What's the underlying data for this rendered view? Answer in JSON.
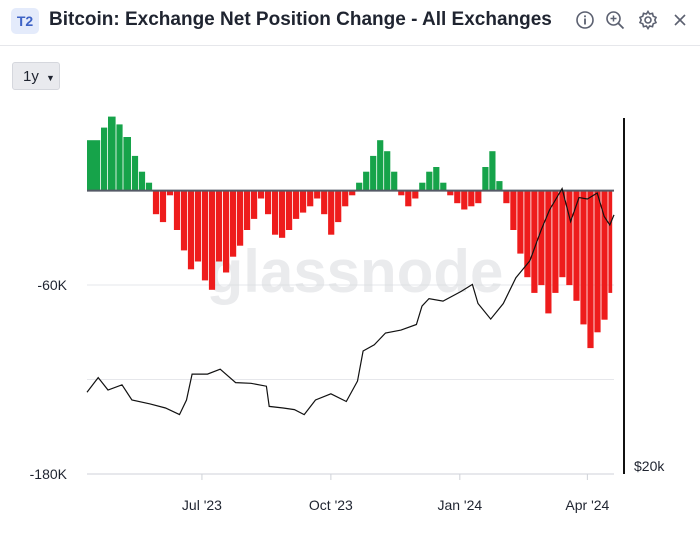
{
  "header": {
    "badge": "T2",
    "title": "Bitcoin: Exchange Net Position Change - All Exchanges",
    "icons": [
      "info-icon",
      "zoom-icon",
      "gear-icon",
      "close-icon"
    ]
  },
  "toolbar": {
    "range_label": "1y"
  },
  "watermark": "glassnode",
  "colors": {
    "positive": "#16a34a",
    "negative": "#ee1c1c",
    "price": "#111111"
  },
  "chart_data": {
    "type": "bar",
    "title": "Bitcoin: Exchange Net Position Change - All Exchanges",
    "x_range": [
      "2023-04-10",
      "2024-04-20"
    ],
    "x_ticks": [
      {
        "date": "2023-07-01",
        "label": "Jul '23"
      },
      {
        "date": "2023-10-01",
        "label": "Oct '23"
      },
      {
        "date": "2024-01-01",
        "label": "Jan '24"
      },
      {
        "date": "2024-04-01",
        "label": "Apr '24"
      }
    ],
    "y_left": {
      "ylim": [
        -180000,
        48000
      ],
      "ticks": [
        {
          "value": -60000,
          "label": "-60K"
        },
        {
          "value": -180000,
          "label": "-180K"
        }
      ]
    },
    "y_right": {
      "label": "$20k",
      "scale": "log"
    },
    "grid": true,
    "series": [
      {
        "kind": "bar",
        "points": [
          [
            "2023-04-10",
            32000
          ],
          [
            "2023-04-20",
            40000
          ],
          [
            "2023-04-25",
            47000
          ],
          [
            "2023-05-01",
            42000
          ],
          [
            "2023-05-06",
            34000
          ],
          [
            "2023-05-12",
            22000
          ],
          [
            "2023-05-17",
            12000
          ],
          [
            "2023-05-22",
            5000
          ],
          [
            "2023-05-27",
            -15000
          ],
          [
            "2023-06-01",
            -20000
          ],
          [
            "2023-06-06",
            -3000
          ],
          [
            "2023-06-11",
            -25000
          ],
          [
            "2023-06-16",
            -38000
          ],
          [
            "2023-06-21",
            -50000
          ],
          [
            "2023-06-26",
            -45000
          ],
          [
            "2023-07-01",
            -57000
          ],
          [
            "2023-07-06",
            -63000
          ],
          [
            "2023-07-11",
            -45000
          ],
          [
            "2023-07-16",
            -52000
          ],
          [
            "2023-07-21",
            -42000
          ],
          [
            "2023-07-26",
            -35000
          ],
          [
            "2023-07-31",
            -25000
          ],
          [
            "2023-08-05",
            -18000
          ],
          [
            "2023-08-10",
            -5000
          ],
          [
            "2023-08-15",
            -15000
          ],
          [
            "2023-08-20",
            -28000
          ],
          [
            "2023-08-25",
            -30000
          ],
          [
            "2023-08-30",
            -25000
          ],
          [
            "2023-09-04",
            -18000
          ],
          [
            "2023-09-09",
            -14000
          ],
          [
            "2023-09-14",
            -10000
          ],
          [
            "2023-09-19",
            -5000
          ],
          [
            "2023-09-24",
            -15000
          ],
          [
            "2023-09-29",
            -28000
          ],
          [
            "2023-10-04",
            -20000
          ],
          [
            "2023-10-09",
            -10000
          ],
          [
            "2023-10-14",
            -3000
          ],
          [
            "2023-10-19",
            5000
          ],
          [
            "2023-10-24",
            12000
          ],
          [
            "2023-10-29",
            22000
          ],
          [
            "2023-11-03",
            32000
          ],
          [
            "2023-11-08",
            25000
          ],
          [
            "2023-11-13",
            12000
          ],
          [
            "2023-11-18",
            -3000
          ],
          [
            "2023-11-23",
            -10000
          ],
          [
            "2023-11-28",
            -5000
          ],
          [
            "2023-12-03",
            5000
          ],
          [
            "2023-12-08",
            12000
          ],
          [
            "2023-12-13",
            15000
          ],
          [
            "2023-12-18",
            5000
          ],
          [
            "2023-12-23",
            -3000
          ],
          [
            "2023-12-28",
            -8000
          ],
          [
            "2024-01-02",
            -12000
          ],
          [
            "2024-01-07",
            -10000
          ],
          [
            "2024-01-12",
            -8000
          ],
          [
            "2024-01-17",
            15000
          ],
          [
            "2024-01-22",
            25000
          ],
          [
            "2024-01-27",
            6000
          ],
          [
            "2024-02-01",
            -8000
          ],
          [
            "2024-02-06",
            -25000
          ],
          [
            "2024-02-11",
            -40000
          ],
          [
            "2024-02-16",
            -55000
          ],
          [
            "2024-02-21",
            -65000
          ],
          [
            "2024-02-26",
            -60000
          ],
          [
            "2024-03-02",
            -78000
          ],
          [
            "2024-03-07",
            -65000
          ],
          [
            "2024-03-12",
            -55000
          ],
          [
            "2024-03-17",
            -60000
          ],
          [
            "2024-03-22",
            -70000
          ],
          [
            "2024-03-27",
            -85000
          ],
          [
            "2024-04-01",
            -100000
          ],
          [
            "2024-04-06",
            -90000
          ],
          [
            "2024-04-11",
            -82000
          ],
          [
            "2024-04-16",
            -65000
          ]
        ]
      },
      {
        "kind": "line",
        "points": [
          [
            "2023-04-10",
            28000
          ],
          [
            "2023-04-18",
            30000
          ],
          [
            "2023-04-25",
            28300
          ],
          [
            "2023-05-05",
            29000
          ],
          [
            "2023-05-12",
            27000
          ],
          [
            "2023-05-25",
            26500
          ],
          [
            "2023-06-05",
            26000
          ],
          [
            "2023-06-15",
            25200
          ],
          [
            "2023-06-20",
            27000
          ],
          [
            "2023-06-24",
            30500
          ],
          [
            "2023-07-05",
            30500
          ],
          [
            "2023-07-14",
            31200
          ],
          [
            "2023-07-25",
            29300
          ],
          [
            "2023-08-05",
            29200
          ],
          [
            "2023-08-16",
            28800
          ],
          [
            "2023-08-18",
            26200
          ],
          [
            "2023-08-28",
            26000
          ],
          [
            "2023-09-05",
            25800
          ],
          [
            "2023-09-12",
            25200
          ],
          [
            "2023-09-20",
            27000
          ],
          [
            "2023-10-01",
            27800
          ],
          [
            "2023-10-12",
            26800
          ],
          [
            "2023-10-20",
            29500
          ],
          [
            "2023-10-24",
            34000
          ],
          [
            "2023-11-01",
            35000
          ],
          [
            "2023-11-09",
            37000
          ],
          [
            "2023-11-20",
            37500
          ],
          [
            "2023-12-01",
            38500
          ],
          [
            "2023-12-05",
            42000
          ],
          [
            "2023-12-10",
            43500
          ],
          [
            "2023-12-20",
            43000
          ],
          [
            "2024-01-02",
            45000
          ],
          [
            "2024-01-10",
            46500
          ],
          [
            "2024-01-14",
            42500
          ],
          [
            "2024-01-23",
            39500
          ],
          [
            "2024-02-01",
            42500
          ],
          [
            "2024-02-10",
            48000
          ],
          [
            "2024-02-20",
            52000
          ],
          [
            "2024-02-28",
            60000
          ],
          [
            "2024-03-05",
            66000
          ],
          [
            "2024-03-14",
            73000
          ],
          [
            "2024-03-20",
            62500
          ],
          [
            "2024-03-26",
            70000
          ],
          [
            "2024-04-01",
            69500
          ],
          [
            "2024-04-08",
            71500
          ],
          [
            "2024-04-13",
            64000
          ],
          [
            "2024-04-17",
            61500
          ],
          [
            "2024-04-20",
            64500
          ]
        ]
      }
    ]
  }
}
